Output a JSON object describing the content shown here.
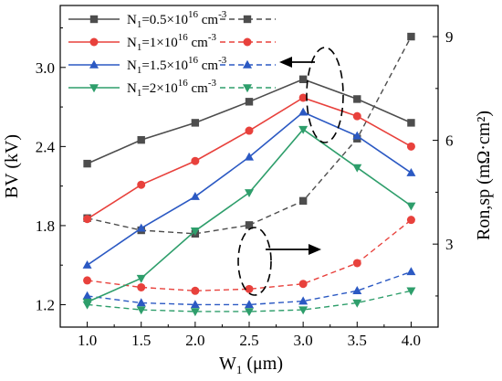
{
  "chart_data": {
    "type": "line",
    "xlabel": {
      "main": "W",
      "sub": "1",
      "rest": "  (μm)"
    },
    "ylabel_left": "BV  (kV)",
    "ylabel_right": "Ron,sp  (mΩ·cm²)",
    "x_ticks": [
      "1.0",
      "1.5",
      "2.0",
      "2.5",
      "3.0",
      "3.5",
      "4.0"
    ],
    "y_left_ticks": [
      "1.2",
      "1.8",
      "2.4",
      "3.0"
    ],
    "y_right_ticks": [
      "3",
      "6",
      "9"
    ],
    "xlim": [
      0.75,
      4.25
    ],
    "ylim_left": [
      1.03,
      3.47
    ],
    "ylim_right": [
      0.6,
      9.9
    ],
    "x": [
      1.0,
      1.5,
      2.0,
      2.5,
      3.0,
      3.5,
      4.0
    ],
    "legend": [
      {
        "pre": "N",
        "sub": "1",
        "mid": "=0.5×10",
        "sup": "16",
        "post": " cm",
        "sup2": "-3"
      },
      {
        "pre": "N",
        "sub": "1",
        "mid": "=1×10",
        "sup": "16",
        "post": " cm",
        "sup2": "-3"
      },
      {
        "pre": "N",
        "sub": "1",
        "mid": "=1.5×10",
        "sup": "16",
        "post": " cm",
        "sup2": "-3"
      },
      {
        "pre": "N",
        "sub": "1",
        "mid": "=2×10",
        "sup": "16",
        "post": " cm",
        "sup2": "-3"
      }
    ],
    "series": [
      {
        "color": "#4d4d4d",
        "marker": "square",
        "bv": [
          2.27,
          2.45,
          2.58,
          2.74,
          2.91,
          2.76,
          2.58
        ],
        "ron": [
          3.75,
          3.4,
          3.3,
          3.55,
          4.25,
          6.05,
          9.0
        ]
      },
      {
        "color": "#e8413c",
        "marker": "circle",
        "bv": [
          1.85,
          2.11,
          2.29,
          2.52,
          2.77,
          2.63,
          2.4
        ],
        "ron": [
          1.95,
          1.75,
          1.65,
          1.7,
          1.85,
          2.45,
          3.7
        ]
      },
      {
        "color": "#2b59c3",
        "marker": "triangle-up",
        "bv": [
          1.5,
          1.78,
          2.02,
          2.32,
          2.66,
          2.48,
          2.2
        ],
        "ron": [
          1.5,
          1.3,
          1.25,
          1.25,
          1.35,
          1.65,
          2.2
        ]
      },
      {
        "color": "#2e9e6b",
        "marker": "triangle-down",
        "bv": [
          1.22,
          1.4,
          1.76,
          2.05,
          2.53,
          2.24,
          1.95
        ],
        "ron": [
          1.25,
          1.1,
          1.05,
          1.05,
          1.1,
          1.3,
          1.65
        ]
      }
    ]
  }
}
